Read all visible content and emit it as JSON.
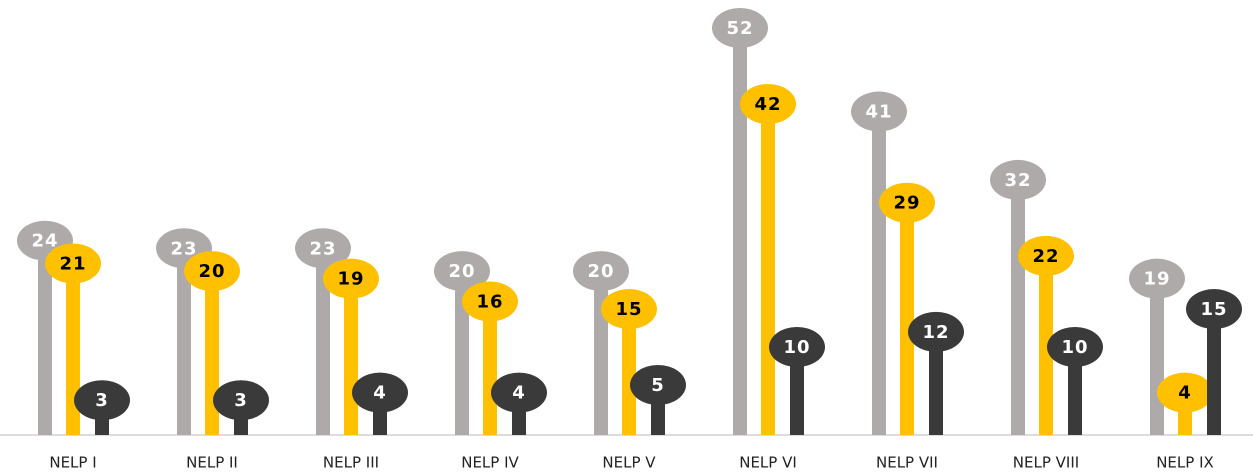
{
  "chart_data": {
    "type": "lollipop",
    "categories": [
      "NELP I",
      "NELP II",
      "NELP III",
      "NELP IV",
      "NELP V",
      "NELP VI",
      "NELP VII",
      "NELP VIII",
      "NELP IX"
    ],
    "series": [
      {
        "color": "#aeaaaa",
        "values": [
          24,
          23,
          23,
          20,
          20,
          52,
          41,
          32,
          19
        ]
      },
      {
        "color": "#ffc000",
        "values": [
          21,
          20,
          19,
          16,
          15,
          42,
          29,
          22,
          4
        ]
      },
      {
        "color": "#3a3a3a",
        "values": [
          3,
          3,
          4,
          4,
          5,
          10,
          12,
          10,
          15
        ]
      }
    ]
  }
}
